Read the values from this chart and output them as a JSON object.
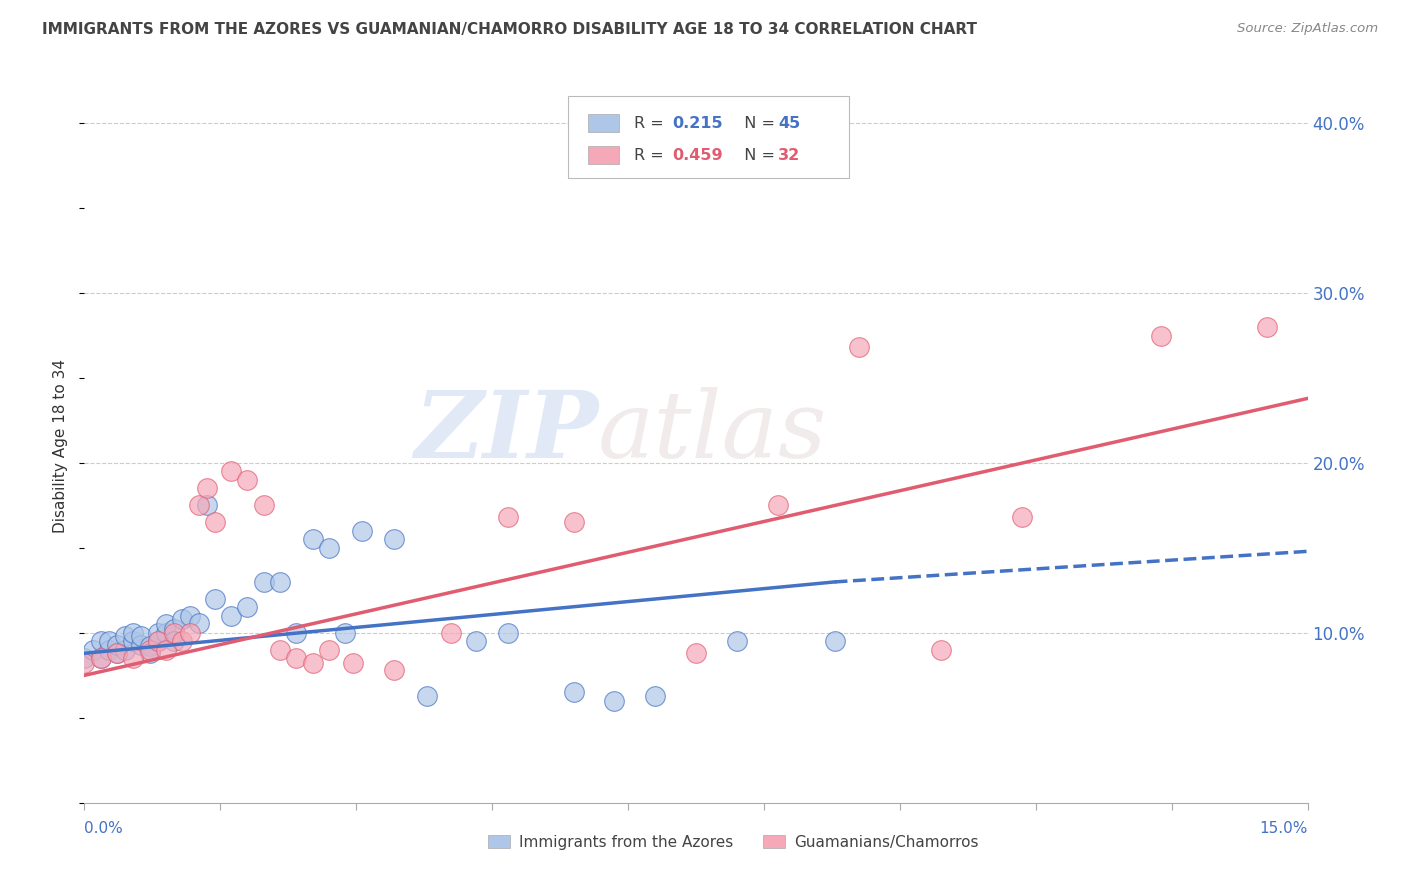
{
  "title": "IMMIGRANTS FROM THE AZORES VS GUAMANIAN/CHAMORRO DISABILITY AGE 18 TO 34 CORRELATION CHART",
  "source": "Source: ZipAtlas.com",
  "ylabel": "Disability Age 18 to 34",
  "watermark_zip": "ZIP",
  "watermark_atlas": "atlas",
  "legend1_color": "#aec6e8",
  "legend2_color": "#f4a8b8",
  "line1_color": "#4472c4",
  "line2_color": "#e05c70",
  "xlim": [
    0.0,
    0.15
  ],
  "ylim": [
    0.0,
    0.42
  ],
  "azores_x": [
    0.0,
    0.001,
    0.002,
    0.002,
    0.003,
    0.003,
    0.004,
    0.004,
    0.005,
    0.005,
    0.006,
    0.006,
    0.007,
    0.007,
    0.008,
    0.008,
    0.009,
    0.009,
    0.01,
    0.01,
    0.011,
    0.011,
    0.012,
    0.013,
    0.014,
    0.015,
    0.016,
    0.018,
    0.02,
    0.022,
    0.024,
    0.026,
    0.028,
    0.03,
    0.032,
    0.034,
    0.038,
    0.042,
    0.048,
    0.052,
    0.06,
    0.065,
    0.07,
    0.08,
    0.092
  ],
  "azores_y": [
    0.085,
    0.09,
    0.095,
    0.085,
    0.09,
    0.095,
    0.088,
    0.093,
    0.09,
    0.098,
    0.095,
    0.1,
    0.093,
    0.098,
    0.092,
    0.088,
    0.095,
    0.1,
    0.1,
    0.105,
    0.102,
    0.095,
    0.108,
    0.11,
    0.106,
    0.175,
    0.12,
    0.11,
    0.115,
    0.13,
    0.13,
    0.1,
    0.155,
    0.15,
    0.1,
    0.16,
    0.155,
    0.063,
    0.095,
    0.1,
    0.065,
    0.06,
    0.063,
    0.095,
    0.095
  ],
  "chamorro_x": [
    0.0,
    0.002,
    0.004,
    0.006,
    0.008,
    0.009,
    0.01,
    0.011,
    0.012,
    0.013,
    0.014,
    0.015,
    0.016,
    0.018,
    0.02,
    0.022,
    0.024,
    0.026,
    0.028,
    0.03,
    0.033,
    0.038,
    0.045,
    0.052,
    0.06,
    0.075,
    0.085,
    0.095,
    0.105,
    0.115,
    0.132,
    0.145
  ],
  "chamorro_y": [
    0.082,
    0.085,
    0.088,
    0.085,
    0.09,
    0.095,
    0.09,
    0.1,
    0.095,
    0.1,
    0.175,
    0.185,
    0.165,
    0.195,
    0.19,
    0.175,
    0.09,
    0.085,
    0.082,
    0.09,
    0.082,
    0.078,
    0.1,
    0.168,
    0.165,
    0.088,
    0.175,
    0.268,
    0.09,
    0.168,
    0.275,
    0.28
  ],
  "azores_line": {
    "x0": 0.0,
    "y0": 0.088,
    "x1": 0.092,
    "y1": 0.13,
    "x_dash_end": 0.15,
    "y_dash_end": 0.148
  },
  "chamorro_line": {
    "x0": 0.0,
    "y0": 0.075,
    "x1": 0.15,
    "y1": 0.238
  },
  "legend_bottom_label1": "Immigrants from the Azores",
  "legend_bottom_label2": "Guamanians/Chamorros"
}
